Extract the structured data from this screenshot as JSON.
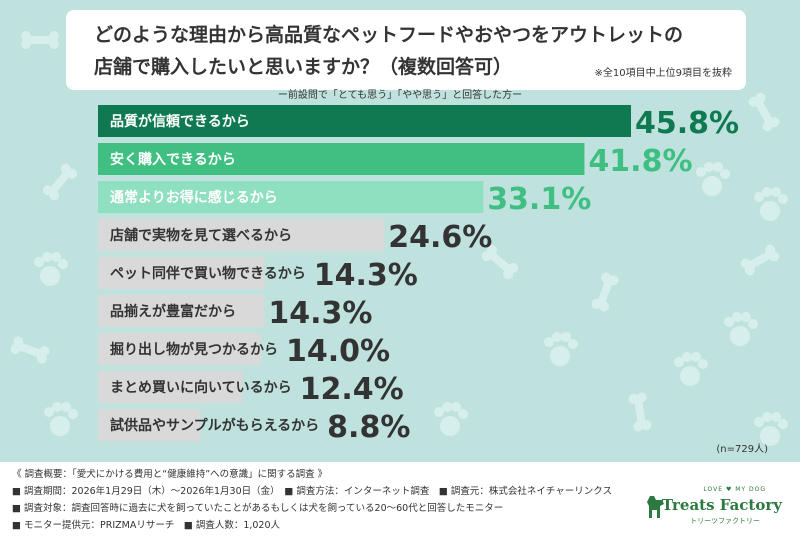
{
  "title": {
    "line1": "どのような理由から高品質なペットフードやおやつをアウトレットの",
    "line2": "店舗で購入したいと思いますか？（複数回答可）",
    "note": "※全10項目中上位9項目を抜粋"
  },
  "subtitle": "ー前設問で「とても思う」「やや思う」と回答した方ー",
  "chart_data": {
    "type": "bar",
    "orientation": "horizontal",
    "unit": "%",
    "categories": [
      "品質が信頼できるから",
      "安く購入できるから",
      "通常よりお得に感じるから",
      "店舗で実物を見て選べるから",
      "ペット同伴で買い物できるから",
      "品揃えが豊富だから",
      "掘り出し物が見つかるから",
      "まとめ買いに向いているから",
      "試供品やサンプルがもらえるから"
    ],
    "values": [
      45.8,
      41.8,
      33.1,
      24.6,
      14.3,
      14.3,
      14.0,
      12.4,
      8.8
    ],
    "value_labels": [
      "45.8%",
      "41.8%",
      "33.1%",
      "24.6%",
      "14.3%",
      "14.3%",
      "14.0%",
      "12.4%",
      "8.8%"
    ],
    "bar_colors": [
      "#0f7a52",
      "#3fbf82",
      "#8fe0c0",
      "#d9d9d9",
      "#d9d9d9",
      "#d9d9d9",
      "#d9d9d9",
      "#d9d9d9",
      "#d9d9d9"
    ],
    "label_colors": [
      "#ffffff",
      "#ffffff",
      "#ffffff",
      "#333333",
      "#333333",
      "#333333",
      "#333333",
      "#333333",
      "#333333"
    ],
    "value_colors": [
      "#0f7a52",
      "#3fbf82",
      "#3fbf82",
      "#333333",
      "#333333",
      "#333333",
      "#333333",
      "#333333",
      "#333333"
    ],
    "xlim": [
      0,
      45.8
    ]
  },
  "sample_size": "(n=729人)",
  "footer": {
    "line1": "《 調査概要：「愛犬にかける費用と“健康維持”への意識」に関する調査 》",
    "line2": "■ 調査期間：2026年1月29日（木）～2026年1月30日（金）　■ 調査方法：インターネット調査　■ 調査元：株式会社ネイチャーリンクス",
    "line3": "■ 調査対象：調査回答時に過去に犬を飼っていたことがあるもしくは犬を飼っている20～60代と回答したモニター",
    "line4": "■ モニター提供元：PRIZMAリサーチ　■ 調査人数：1,020人"
  },
  "logo": {
    "top": "LOVE ♥ MY DOG",
    "main": "Treats Factory",
    "sub": "トリーツファクトリー"
  }
}
